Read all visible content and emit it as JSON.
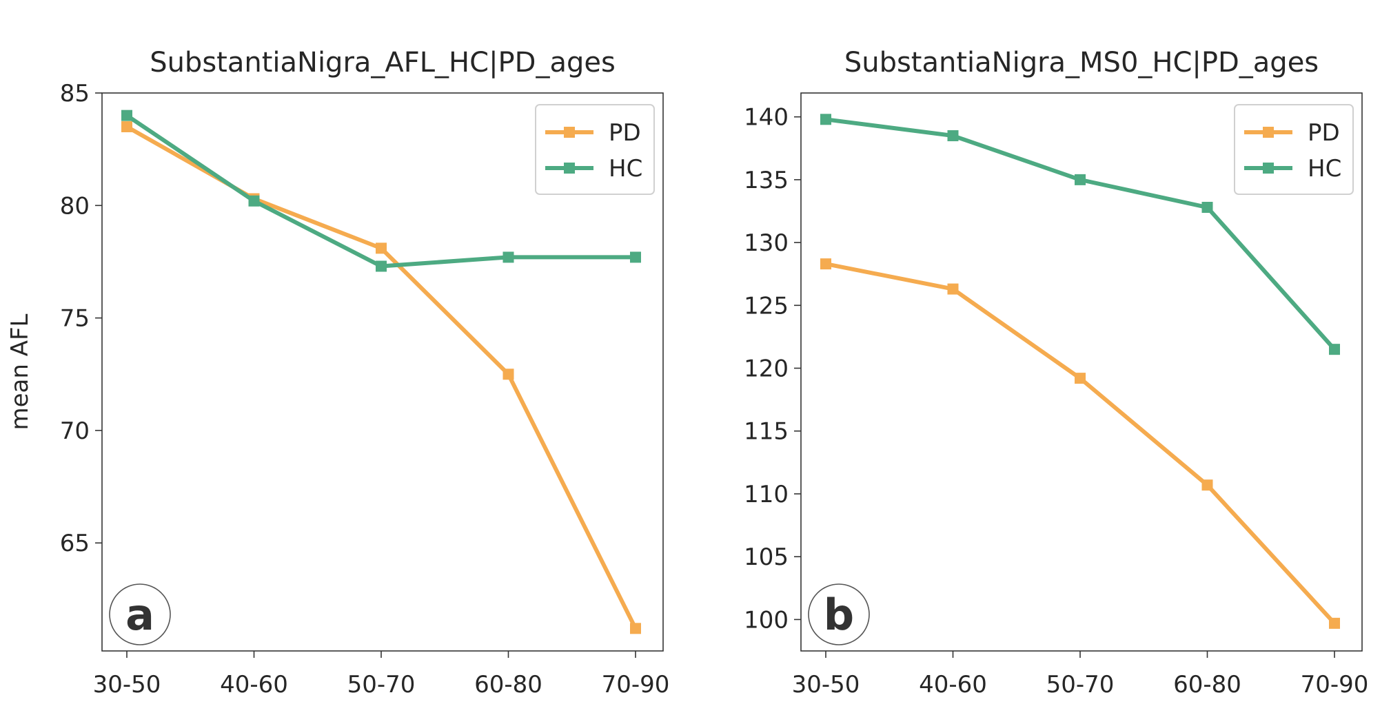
{
  "chart_data": [
    {
      "type": "line",
      "panel_letter": "a",
      "title": "SubstantiaNigra_AFL_HC|PD_ages",
      "xlabel": "",
      "ylabel": "mean AFL",
      "categories": [
        "30-50",
        "40-60",
        "50-70",
        "60-80",
        "70-90"
      ],
      "series": [
        {
          "name": "PD",
          "values": [
            83.5,
            80.3,
            78.1,
            72.5,
            61.2
          ],
          "color": "#f5ab4f"
        },
        {
          "name": "HC",
          "values": [
            84.0,
            80.2,
            77.3,
            77.7,
            77.7
          ],
          "color": "#4daa82"
        }
      ],
      "ylim": [
        60.2,
        85.0
      ],
      "yticks": [
        65,
        70,
        75,
        80,
        85
      ],
      "grid": false,
      "legend": "top-right"
    },
    {
      "type": "line",
      "panel_letter": "b",
      "title": "SubstantiaNigra_MS0_HC|PD_ages",
      "xlabel": "",
      "ylabel": "",
      "categories": [
        "30-50",
        "40-60",
        "50-70",
        "60-80",
        "70-90"
      ],
      "series": [
        {
          "name": "PD",
          "values": [
            128.3,
            126.3,
            119.2,
            110.7,
            99.7
          ],
          "color": "#f5ab4f"
        },
        {
          "name": "HC",
          "values": [
            139.8,
            138.5,
            135.0,
            132.8,
            121.5
          ],
          "color": "#4daa82"
        }
      ],
      "ylim": [
        97.5,
        141.9
      ],
      "yticks": [
        100,
        105,
        110,
        115,
        120,
        125,
        130,
        135,
        140
      ],
      "grid": false,
      "legend": "top-right"
    }
  ]
}
